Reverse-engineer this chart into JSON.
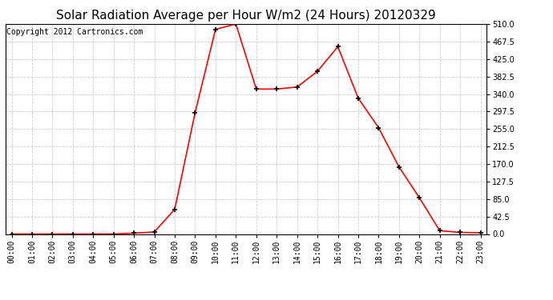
{
  "title": "Solar Radiation Average per Hour W/m2 (24 Hours) 20120329",
  "copyright": "Copyright 2012 Cartronics.com",
  "x_labels": [
    "00:00",
    "01:00",
    "02:00",
    "03:00",
    "04:00",
    "05:00",
    "06:00",
    "07:00",
    "08:00",
    "09:00",
    "10:00",
    "11:00",
    "12:00",
    "13:00",
    "14:00",
    "15:00",
    "16:00",
    "17:00",
    "18:00",
    "19:00",
    "20:00",
    "21:00",
    "22:00",
    "23:00"
  ],
  "y_values": [
    0,
    0,
    0,
    0,
    0,
    0,
    2,
    5,
    60,
    295,
    497,
    510,
    352,
    352,
    357,
    395,
    455,
    330,
    258,
    163,
    88,
    8,
    4,
    3
  ],
  "line_color": "#ff0000",
  "marker": "+",
  "marker_color": "#000000",
  "marker_size": 5,
  "marker_linewidth": 1.2,
  "background_color": "#ffffff",
  "grid_color": "#cccccc",
  "ylim": [
    0,
    510
  ],
  "yticks": [
    0,
    42.5,
    85.0,
    127.5,
    170.0,
    212.5,
    255.0,
    297.5,
    340.0,
    382.5,
    425.0,
    467.5,
    510.0
  ],
  "title_fontsize": 11,
  "copyright_fontsize": 7,
  "tick_fontsize": 7,
  "figsize": [
    6.9,
    3.75
  ],
  "dpi": 100
}
